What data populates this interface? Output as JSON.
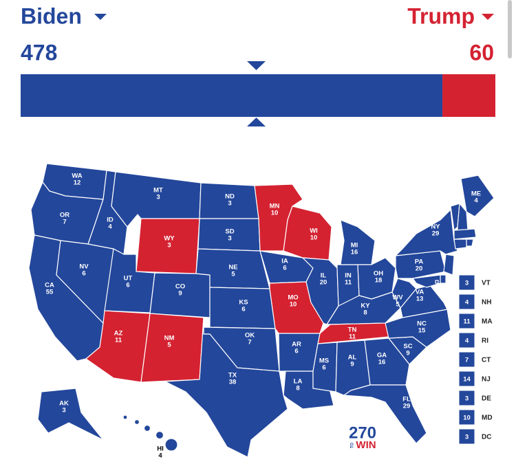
{
  "candidates": [
    {
      "name": "Biden",
      "votes": 478,
      "color": "#23479b"
    },
    {
      "name": "Trump",
      "votes": 60,
      "color": "#d42231"
    }
  ],
  "states": [
    {
      "abbr": "WA",
      "votes": 12,
      "winner": "Biden"
    },
    {
      "abbr": "OR",
      "votes": 7,
      "winner": "Biden"
    },
    {
      "abbr": "CA",
      "votes": 55,
      "winner": "Biden"
    },
    {
      "abbr": "NV",
      "votes": 6,
      "winner": "Biden"
    },
    {
      "abbr": "ID",
      "votes": 4,
      "winner": "Biden"
    },
    {
      "abbr": "MT",
      "votes": 3,
      "winner": "Biden"
    },
    {
      "abbr": "WY",
      "votes": 3,
      "winner": "Trump"
    },
    {
      "abbr": "UT",
      "votes": 6,
      "winner": "Biden"
    },
    {
      "abbr": "CO",
      "votes": 9,
      "winner": "Biden"
    },
    {
      "abbr": "AZ",
      "votes": 11,
      "winner": "Trump"
    },
    {
      "abbr": "NM",
      "votes": 5,
      "winner": "Trump"
    },
    {
      "abbr": "ND",
      "votes": 3,
      "winner": "Biden"
    },
    {
      "abbr": "SD",
      "votes": 3,
      "winner": "Biden"
    },
    {
      "abbr": "NE",
      "votes": 5,
      "winner": "Biden"
    },
    {
      "abbr": "KS",
      "votes": 6,
      "winner": "Biden"
    },
    {
      "abbr": "OK",
      "votes": 7,
      "winner": "Biden"
    },
    {
      "abbr": "TX",
      "votes": 38,
      "winner": "Biden"
    },
    {
      "abbr": "MN",
      "votes": 10,
      "winner": "Trump"
    },
    {
      "abbr": "IA",
      "votes": 6,
      "winner": "Biden"
    },
    {
      "abbr": "WI",
      "votes": 10,
      "winner": "Trump"
    },
    {
      "abbr": "MO",
      "votes": 10,
      "winner": "Trump"
    },
    {
      "abbr": "IL",
      "votes": 20,
      "winner": "Biden"
    },
    {
      "abbr": "IN",
      "votes": 11,
      "winner": "Biden"
    },
    {
      "abbr": "MI",
      "votes": 16,
      "winner": "Biden"
    },
    {
      "abbr": "OH",
      "votes": 18,
      "winner": "Biden"
    },
    {
      "abbr": "KY",
      "votes": 8,
      "winner": "Biden"
    },
    {
      "abbr": "TN",
      "votes": 11,
      "winner": "Trump"
    },
    {
      "abbr": "AR",
      "votes": 6,
      "winner": "Biden"
    },
    {
      "abbr": "LA",
      "votes": 8,
      "winner": "Biden"
    },
    {
      "abbr": "MS",
      "votes": 6,
      "winner": "Biden"
    },
    {
      "abbr": "AL",
      "votes": 9,
      "winner": "Biden"
    },
    {
      "abbr": "GA",
      "votes": 16,
      "winner": "Biden"
    },
    {
      "abbr": "FL",
      "votes": 29,
      "winner": "Biden"
    },
    {
      "abbr": "SC",
      "votes": 9,
      "winner": "Biden"
    },
    {
      "abbr": "NC",
      "votes": 15,
      "winner": "Biden"
    },
    {
      "abbr": "VA",
      "votes": 13,
      "winner": "Biden"
    },
    {
      "abbr": "WV",
      "votes": 5,
      "winner": "Biden"
    },
    {
      "abbr": "PA",
      "votes": 20,
      "winner": "Biden"
    },
    {
      "abbr": "NY",
      "votes": 29,
      "winner": "Biden"
    },
    {
      "abbr": "ME",
      "votes": 4,
      "winner": "Biden"
    },
    {
      "abbr": "AK",
      "votes": 3,
      "winner": "Biden"
    },
    {
      "abbr": "HI",
      "votes": 4,
      "winner": "Biden"
    }
  ],
  "small_states": [
    {
      "abbr": "VT",
      "votes": 3,
      "winner": "Biden"
    },
    {
      "abbr": "NH",
      "votes": 4,
      "winner": "Biden"
    },
    {
      "abbr": "MA",
      "votes": 11,
      "winner": "Biden"
    },
    {
      "abbr": "RI",
      "votes": 4,
      "winner": "Biden"
    },
    {
      "abbr": "CT",
      "votes": 7,
      "winner": "Biden"
    },
    {
      "abbr": "NJ",
      "votes": 14,
      "winner": "Biden"
    },
    {
      "abbr": "DE",
      "votes": 3,
      "winner": "Biden"
    },
    {
      "abbr": "MD",
      "votes": 10,
      "winner": "Biden"
    },
    {
      "abbr": "DC",
      "votes": 3,
      "winner": "Biden"
    }
  ],
  "logo": {
    "number": "270",
    "to": "TO",
    "win": "WIN"
  }
}
